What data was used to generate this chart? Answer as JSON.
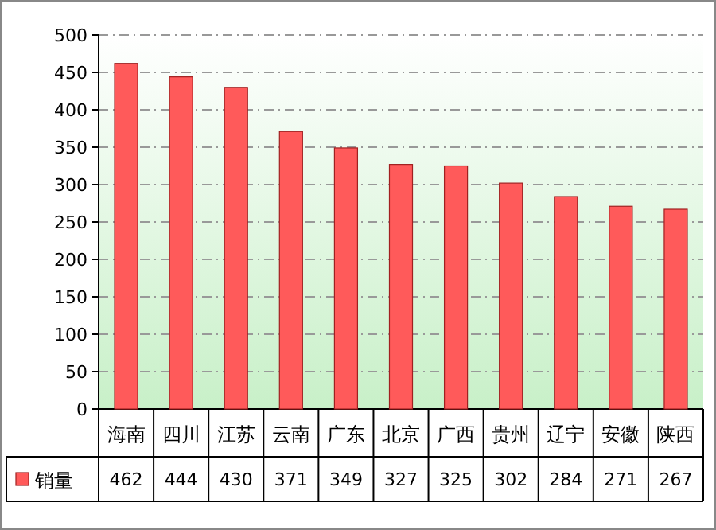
{
  "chart_data": {
    "type": "bar",
    "categories": [
      "海南",
      "四川",
      "江苏",
      "云南",
      "广东",
      "北京",
      "广西",
      "贵州",
      "辽宁",
      "安徽",
      "陕西"
    ],
    "series": [
      {
        "name": "销量",
        "color": "#ff5a5a",
        "values": [
          462,
          444,
          430,
          371,
          349,
          327,
          325,
          302,
          284,
          271,
          267
        ]
      }
    ],
    "ylim": [
      0,
      500
    ],
    "yticks": [
      0,
      50,
      100,
      150,
      200,
      250,
      300,
      350,
      400,
      450,
      500
    ],
    "grid": "y",
    "legend": "bottom left",
    "data_labels": true
  }
}
